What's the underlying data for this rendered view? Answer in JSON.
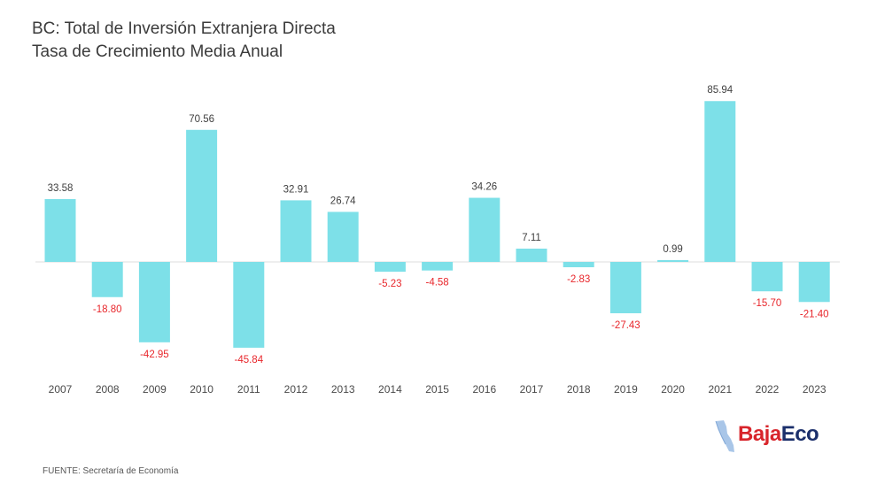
{
  "chart_data": {
    "type": "bar",
    "title": "BC: Total de Inversión Extranjera Directa",
    "subtitle": "Tasa de Crecimiento Media Anual",
    "categories": [
      "2007",
      "2008",
      "2009",
      "2010",
      "2011",
      "2012",
      "2013",
      "2014",
      "2015",
      "2016",
      "2017",
      "2018",
      "2019",
      "2020",
      "2021",
      "2022",
      "2023"
    ],
    "values": [
      33.58,
      -18.8,
      -42.95,
      70.56,
      -45.84,
      32.91,
      26.74,
      -5.23,
      -4.58,
      34.26,
      7.11,
      -2.83,
      -27.43,
      0.99,
      85.94,
      -15.7,
      -21.4
    ],
    "labels": [
      "33.58",
      "-18.80",
      "-42.95",
      "70.56",
      "-45.84",
      "32.91",
      "26.74",
      "-5.23",
      "-4.58",
      "34.26",
      "7.11",
      "-2.83",
      "-27.43",
      "0.99",
      "85.94",
      "-15.70",
      "-21.40"
    ],
    "xlabel": "",
    "ylabel": "",
    "ylim": [
      -50,
      90
    ],
    "grid": false,
    "bar_color": "#7de0e8",
    "positive_label_color": "#404040",
    "negative_label_color": "#e8262b"
  },
  "footer": {
    "source": "FUENTE: Secretaría de Economía"
  },
  "logo": {
    "part1": "Baja",
    "part2": "Eco",
    "colors": {
      "part1": "#d8252b",
      "part2": "#1b2f6b",
      "map": "#a9c6e8"
    }
  }
}
